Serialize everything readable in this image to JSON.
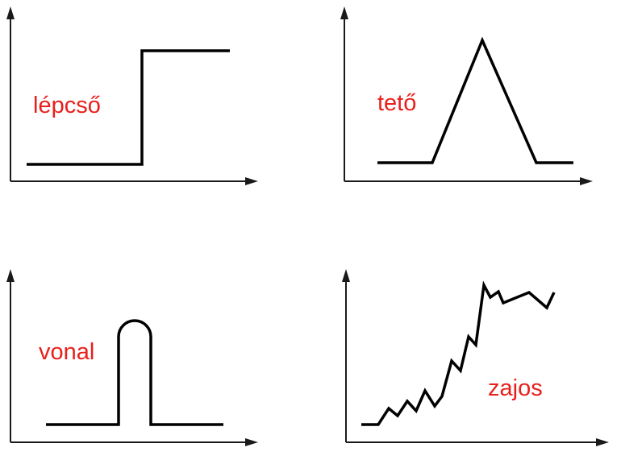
{
  "colors": {
    "label": "#e8201c",
    "axis": "#1a1a1a",
    "signal": "#000000",
    "background": "#ffffff"
  },
  "panels": [
    {
      "id": "step",
      "label": "lépcső",
      "shape": "step edge"
    },
    {
      "id": "roof",
      "label": "tető",
      "shape": "roof edge"
    },
    {
      "id": "line",
      "label": "vonal",
      "shape": "line edge"
    },
    {
      "id": "noisy",
      "label": "zajos",
      "shape": "noisy edge"
    }
  ]
}
